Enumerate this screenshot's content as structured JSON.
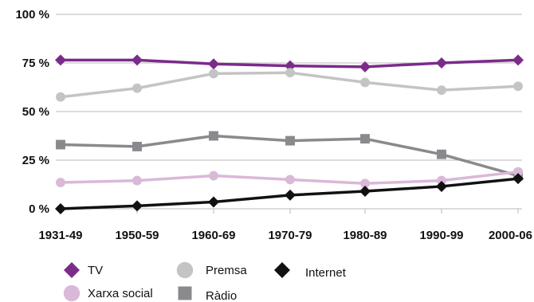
{
  "chart_data": {
    "type": "line",
    "title": "",
    "xlabel": "",
    "ylabel": "",
    "categories": [
      "1931-49",
      "1950-59",
      "1960-69",
      "1970-79",
      "1980-89",
      "1990-99",
      "2000-06"
    ],
    "y_ticks": [
      "0 %",
      "25 %",
      "50 %",
      "75 %",
      "100 %"
    ],
    "ylim": [
      0,
      100
    ],
    "grid": "horizontal",
    "legend_position": "bottom",
    "series": [
      {
        "name": "TV",
        "marker": "diamond",
        "color": "#7b2b8a",
        "values": [
          76.5,
          76.5,
          74.5,
          73.5,
          73,
          75,
          76.5
        ]
      },
      {
        "name": "Premsa",
        "marker": "circle",
        "color": "#c4c4c4",
        "values": [
          57.5,
          62,
          69.5,
          70,
          65,
          61,
          63
        ]
      },
      {
        "name": "Ràdio",
        "marker": "square",
        "color": "#8a8a8e",
        "values": [
          33,
          32,
          37.5,
          35,
          36,
          28,
          17
        ]
      },
      {
        "name": "Xarxa social",
        "marker": "circle",
        "color": "#dab8d8",
        "values": [
          13.5,
          14.5,
          17,
          15,
          13,
          14.5,
          19
        ]
      },
      {
        "name": "Internet",
        "marker": "diamond",
        "color": "#111111",
        "values": [
          0,
          1.5,
          3.5,
          7,
          9,
          11.5,
          15.5
        ]
      }
    ],
    "legend": [
      {
        "label": "TV",
        "series": 0
      },
      {
        "label": "Premsa",
        "series": 1
      },
      {
        "label": "Internet",
        "series": 4
      },
      {
        "label": "Xarxa social",
        "series": 3
      },
      {
        "label": "Ràdio",
        "series": 2
      }
    ]
  }
}
